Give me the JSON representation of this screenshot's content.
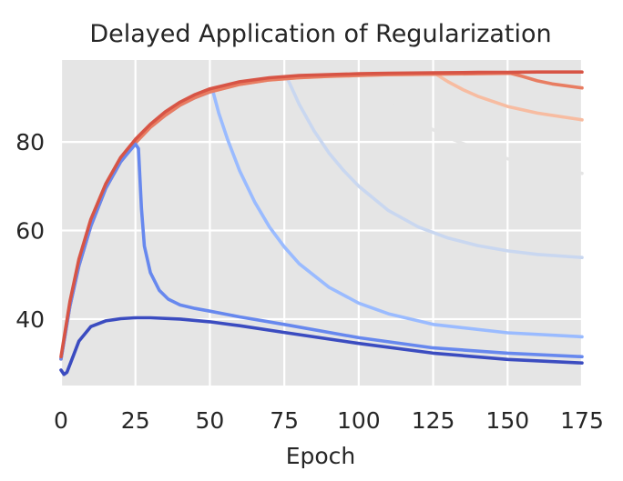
{
  "chart_data": {
    "type": "line",
    "title": "Delayed Application of Regularization",
    "xlabel": "Epoch",
    "ylabel": "",
    "xlim": [
      0,
      175
    ],
    "ylim": [
      25,
      98.5
    ],
    "xticks": [
      0,
      25,
      50,
      75,
      100,
      125,
      150,
      175
    ],
    "yticks": [
      40,
      60,
      80
    ],
    "grid": true,
    "background": "#e5e5e5",
    "colors": {
      "baseline": "#3b4cc0",
      "start_25": "#6788ee",
      "start_50": "#9abbff",
      "start_75": "#c9d7f0",
      "start_100": "#e5e5e5",
      "start_125": "#f7bca1",
      "start_150": "#e87d62",
      "no_regularization": "#d75445"
    },
    "series": [
      {
        "key": "baseline",
        "x": [
          0,
          1,
          2,
          4,
          6,
          10,
          15,
          20,
          25,
          30,
          40,
          50,
          60,
          75,
          100,
          125,
          150,
          175
        ],
        "y": [
          28.5,
          27.5,
          28.0,
          31.5,
          35.0,
          38.3,
          39.6,
          40.1,
          40.3,
          40.3,
          40.0,
          39.4,
          38.5,
          37.0,
          34.5,
          32.3,
          30.9,
          30.1
        ]
      },
      {
        "key": "start_25",
        "x": [
          0,
          3,
          6,
          10,
          15,
          20,
          25,
          26,
          27,
          28,
          30,
          33,
          36,
          40,
          45,
          50,
          60,
          75,
          100,
          125,
          150,
          175
        ],
        "y": [
          31.0,
          43.0,
          52.0,
          61.0,
          69.5,
          75.5,
          79.5,
          78.5,
          65.0,
          56.5,
          50.5,
          46.5,
          44.5,
          43.2,
          42.4,
          41.8,
          40.5,
          38.8,
          35.8,
          33.5,
          32.3,
          31.5
        ]
      },
      {
        "key": "start_50",
        "x": [
          0,
          3,
          6,
          10,
          15,
          20,
          25,
          30,
          35,
          40,
          45,
          51,
          53,
          56,
          60,
          65,
          70,
          75,
          80,
          90,
          100,
          110,
          125,
          150,
          175
        ],
        "y": [
          31.0,
          43.0,
          52.0,
          61.0,
          69.5,
          75.5,
          79.8,
          83.3,
          86.0,
          88.3,
          90.0,
          91.5,
          86.5,
          80.5,
          73.5,
          66.5,
          60.8,
          56.3,
          52.5,
          47.2,
          43.6,
          41.2,
          38.8,
          36.9,
          36.0
        ]
      },
      {
        "key": "start_75",
        "x": [
          0,
          3,
          6,
          10,
          15,
          20,
          25,
          30,
          35,
          40,
          45,
          50,
          60,
          70,
          76,
          80,
          85,
          90,
          95,
          100,
          110,
          120,
          130,
          140,
          150,
          160,
          175
        ],
        "y": [
          31.0,
          43.0,
          52.0,
          61.0,
          69.5,
          75.5,
          79.8,
          83.3,
          86.0,
          88.3,
          90.0,
          91.3,
          93.0,
          94.0,
          94.4,
          88.5,
          82.5,
          77.5,
          73.5,
          70.0,
          64.5,
          60.8,
          58.3,
          56.6,
          55.4,
          54.6,
          53.9
        ]
      },
      {
        "key": "start_100",
        "x": [
          0,
          3,
          6,
          10,
          15,
          20,
          25,
          30,
          35,
          40,
          45,
          50,
          60,
          70,
          80,
          90,
          101,
          105,
          110,
          120,
          130,
          140,
          150,
          160,
          175
        ],
        "y": [
          31.0,
          43.0,
          52.0,
          61.0,
          69.5,
          75.5,
          79.8,
          83.3,
          86.0,
          88.3,
          90.0,
          91.3,
          93.0,
          94.0,
          94.5,
          94.8,
          95.0,
          92.0,
          89.0,
          84.5,
          81.0,
          78.3,
          76.2,
          74.6,
          72.9
        ]
      },
      {
        "key": "start_125",
        "x": [
          0,
          3,
          6,
          10,
          15,
          20,
          25,
          30,
          35,
          40,
          45,
          50,
          60,
          70,
          80,
          90,
          100,
          110,
          126,
          130,
          135,
          140,
          150,
          160,
          175
        ],
        "y": [
          31.0,
          43.0,
          52.0,
          61.0,
          69.5,
          75.5,
          79.8,
          83.3,
          86.0,
          88.3,
          90.0,
          91.3,
          93.0,
          94.0,
          94.5,
          94.8,
          95.0,
          95.2,
          95.3,
          93.6,
          91.8,
          90.3,
          88.0,
          86.5,
          85.0
        ]
      },
      {
        "key": "start_150",
        "x": [
          0,
          3,
          6,
          10,
          15,
          20,
          25,
          30,
          35,
          40,
          45,
          50,
          60,
          70,
          80,
          90,
          100,
          110,
          125,
          140,
          151,
          155,
          160,
          165,
          175
        ],
        "y": [
          31.0,
          43.0,
          52.0,
          61.0,
          69.5,
          75.5,
          79.8,
          83.3,
          86.0,
          88.3,
          90.0,
          91.3,
          93.0,
          94.0,
          94.5,
          94.8,
          95.0,
          95.2,
          95.3,
          95.4,
          95.5,
          94.8,
          93.8,
          93.1,
          92.2
        ]
      },
      {
        "key": "no_regularization",
        "x": [
          0,
          3,
          6,
          10,
          15,
          20,
          25,
          30,
          35,
          40,
          45,
          50,
          60,
          70,
          80,
          90,
          100,
          110,
          125,
          140,
          150,
          160,
          175
        ],
        "y": [
          31.5,
          44.0,
          53.5,
          62.5,
          70.5,
          76.5,
          80.6,
          84.0,
          86.8,
          89.0,
          90.7,
          92.0,
          93.6,
          94.5,
          95.0,
          95.2,
          95.4,
          95.5,
          95.6,
          95.7,
          95.7,
          95.8,
          95.8
        ]
      }
    ],
    "draw_order": [
      "start_100",
      "start_75",
      "start_125",
      "start_50",
      "start_150",
      "start_25",
      "baseline",
      "no_regularization"
    ]
  }
}
